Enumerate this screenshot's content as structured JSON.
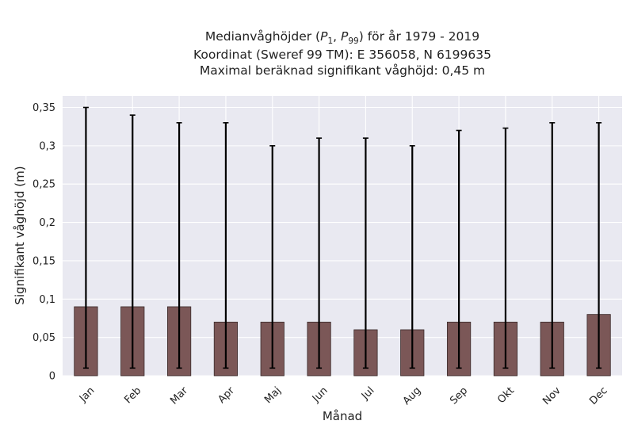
{
  "chart_data": {
    "type": "bar",
    "title_lines": [
      "Medianvåghöjder (P₁, P₉₉) för år 1979 - 2019",
      "Koordinat (Sweref 99 TM): E 356058, N 6199635",
      "Maximal beräknad signifikant våghöjd: 0,45 m"
    ],
    "title_math": {
      "prefix": "Medianvåghöjder (",
      "p1_base": "P",
      "p1_sub": "1",
      "separator": ", ",
      "p99_base": "P",
      "p99_sub": "99",
      "suffix": ") för år 1979 - 2019"
    },
    "xlabel": "Månad",
    "ylabel": "Signifikant våghöjd (m)",
    "categories": [
      "Jan",
      "Feb",
      "Mar",
      "Apr",
      "Maj",
      "Jun",
      "Jul",
      "Aug",
      "Sep",
      "Okt",
      "Nov",
      "Dec"
    ],
    "series": [
      {
        "values": [
          0.09,
          0.09,
          0.09,
          0.07,
          0.07,
          0.07,
          0.06,
          0.06,
          0.07,
          0.07,
          0.07,
          0.08
        ],
        "lower": [
          0.01,
          0.01,
          0.01,
          0.01,
          0.01,
          0.01,
          0.01,
          0.01,
          0.01,
          0.01,
          0.01,
          0.01
        ],
        "upper": [
          0.35,
          0.34,
          0.33,
          0.33,
          0.3,
          0.31,
          0.31,
          0.3,
          0.32,
          0.323,
          0.33,
          0.33
        ]
      }
    ],
    "ylim": [
      0,
      0.365
    ],
    "yticks": [
      0,
      0.05,
      0.1,
      0.15,
      0.2,
      0.25,
      0.3,
      0.35
    ],
    "ytick_labels": [
      "0",
      "0,05",
      "0,1",
      "0,15",
      "0,2",
      "0,25",
      "0,3",
      "0,35"
    ],
    "grid": true,
    "colors": {
      "bar_fill": "#7b5757",
      "bar_edge": "#3a2a2a",
      "errorbar": "#000000",
      "plot_bg": "#e9e9f1",
      "grid": "#ffffff"
    }
  }
}
